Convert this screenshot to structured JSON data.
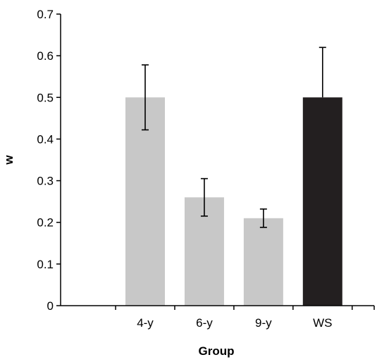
{
  "chart_data": {
    "type": "bar",
    "title": "",
    "xlabel": "Group",
    "ylabel": "w",
    "ylim": [
      0,
      0.7
    ],
    "yticks": [
      "0",
      "0.1",
      "0.2",
      "0.3",
      "0.4",
      "0.5",
      "0.6",
      "0.7"
    ],
    "categories": [
      "4-y",
      "6-y",
      "9-y",
      "WS"
    ],
    "values": [
      0.5,
      0.26,
      0.21,
      0.5
    ],
    "error_low": [
      0.422,
      0.215,
      0.188,
      0.5
    ],
    "error_high": [
      0.578,
      0.305,
      0.232,
      0.62
    ],
    "bar_colors": [
      "#c8c8c8",
      "#c8c8c8",
      "#c8c8c8",
      "#231f20"
    ],
    "grid": false,
    "legend": "none"
  }
}
